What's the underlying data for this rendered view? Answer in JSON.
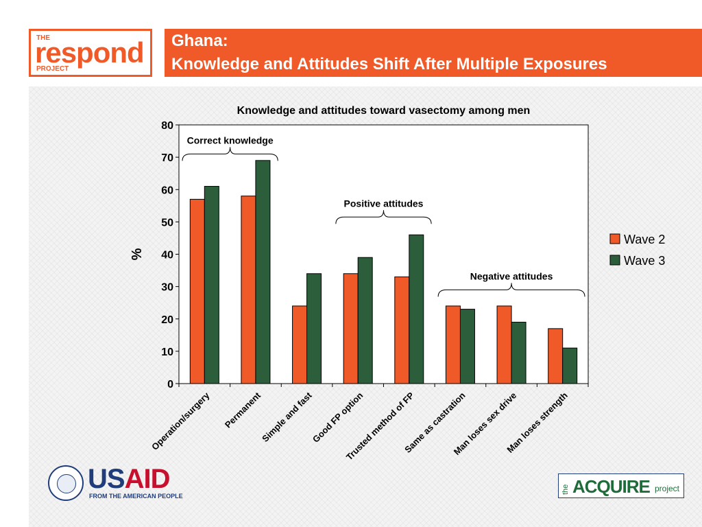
{
  "header": {
    "logo": {
      "the": "THE",
      "main": "respond",
      "project": "PROJECT"
    },
    "title_line1": "Ghana:",
    "title_line2": "Knowledge and Attitudes Shift After Multiple Exposures"
  },
  "colors": {
    "accent": "#f05a28",
    "wave2": "#f05a28",
    "wave3": "#2c5e3b"
  },
  "chart_data": {
    "type": "bar",
    "title": "Knowledge and attitudes toward vasectomy among men",
    "ylabel": "%",
    "xlabel": "",
    "ylim": [
      0,
      80
    ],
    "yticks": [
      0,
      10,
      20,
      30,
      40,
      50,
      60,
      70,
      80
    ],
    "grid": false,
    "legend_position": "right",
    "categories": [
      "Operation/surgery",
      "Permanent",
      "Simple and fast",
      "Good FP option",
      "Trusted method of FP",
      "Same as castration",
      "Man loses sex drive",
      "Man loses strength"
    ],
    "series": [
      {
        "name": "Wave 2",
        "color": "#f05a28",
        "values": [
          57,
          58,
          24,
          34,
          33,
          24,
          24,
          17
        ]
      },
      {
        "name": "Wave 3",
        "color": "#2c5e3b",
        "values": [
          61,
          69,
          34,
          39,
          46,
          23,
          19,
          11
        ]
      }
    ],
    "annotations": [
      {
        "label": "Correct knowledge",
        "from_category": 0,
        "to_category": 1,
        "y": 71
      },
      {
        "label": "Positive attitudes",
        "from_category": 3,
        "to_category": 4,
        "y": 51.5
      },
      {
        "label": "Negative attitudes",
        "from_category": 5,
        "to_category": 7,
        "y": 29
      }
    ]
  },
  "footer": {
    "usaid": {
      "us": "US",
      "aid": "AID",
      "tagline": "FROM THE AMERICAN PEOPLE"
    },
    "acquire": {
      "the": "the",
      "main": "ACQUIRE",
      "project": "project"
    }
  }
}
